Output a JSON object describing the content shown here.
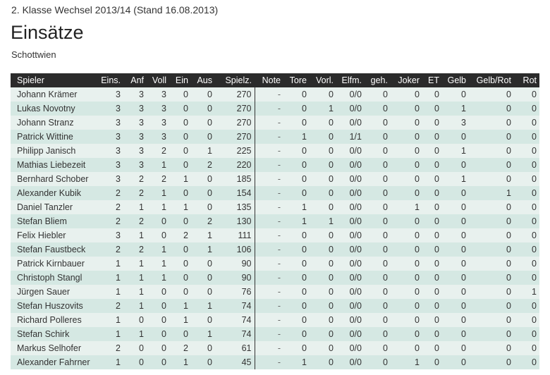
{
  "header": {
    "league": "2. Klasse Wechsel 2013/14 (Stand 16.08.2013)",
    "title": "Einsätze",
    "team": "Schottwien"
  },
  "table": {
    "columns": [
      "Spieler",
      "Eins.",
      "Anf",
      "Voll",
      "Ein",
      "Aus",
      "Spielz.",
      "Note",
      "Tore",
      "Vorl.",
      "Elfm.",
      "geh.",
      "Joker",
      "ET",
      "Gelb",
      "Gelb/Rot",
      "Rot"
    ],
    "rows": [
      [
        "Johann Krämer",
        "3",
        "3",
        "3",
        "0",
        "0",
        "270",
        "-",
        "0",
        "0",
        "0/0",
        "0",
        "0",
        "0",
        "0",
        "0",
        "0"
      ],
      [
        "Lukas Novotny",
        "3",
        "3",
        "3",
        "0",
        "0",
        "270",
        "-",
        "0",
        "1",
        "0/0",
        "0",
        "0",
        "0",
        "1",
        "0",
        "0"
      ],
      [
        "Johann Stranz",
        "3",
        "3",
        "3",
        "0",
        "0",
        "270",
        "-",
        "0",
        "0",
        "0/0",
        "0",
        "0",
        "0",
        "3",
        "0",
        "0"
      ],
      [
        "Patrick Wittine",
        "3",
        "3",
        "3",
        "0",
        "0",
        "270",
        "-",
        "1",
        "0",
        "1/1",
        "0",
        "0",
        "0",
        "0",
        "0",
        "0"
      ],
      [
        "Philipp Janisch",
        "3",
        "3",
        "2",
        "0",
        "1",
        "225",
        "-",
        "0",
        "0",
        "0/0",
        "0",
        "0",
        "0",
        "1",
        "0",
        "0"
      ],
      [
        "Mathias Liebezeit",
        "3",
        "3",
        "1",
        "0",
        "2",
        "220",
        "-",
        "0",
        "0",
        "0/0",
        "0",
        "0",
        "0",
        "0",
        "0",
        "0"
      ],
      [
        "Bernhard Schober",
        "3",
        "2",
        "2",
        "1",
        "0",
        "185",
        "-",
        "0",
        "0",
        "0/0",
        "0",
        "0",
        "0",
        "1",
        "0",
        "0"
      ],
      [
        "Alexander Kubik",
        "2",
        "2",
        "1",
        "0",
        "0",
        "154",
        "-",
        "0",
        "0",
        "0/0",
        "0",
        "0",
        "0",
        "0",
        "1",
        "0"
      ],
      [
        "Daniel Tanzler",
        "2",
        "1",
        "1",
        "1",
        "0",
        "135",
        "-",
        "1",
        "0",
        "0/0",
        "0",
        "1",
        "0",
        "0",
        "0",
        "0"
      ],
      [
        "Stefan Bliem",
        "2",
        "2",
        "0",
        "0",
        "2",
        "130",
        "-",
        "1",
        "1",
        "0/0",
        "0",
        "0",
        "0",
        "0",
        "0",
        "0"
      ],
      [
        "Felix Hiebler",
        "3",
        "1",
        "0",
        "2",
        "1",
        "111",
        "-",
        "0",
        "0",
        "0/0",
        "0",
        "0",
        "0",
        "0",
        "0",
        "0"
      ],
      [
        "Stefan Faustbeck",
        "2",
        "2",
        "1",
        "0",
        "1",
        "106",
        "-",
        "0",
        "0",
        "0/0",
        "0",
        "0",
        "0",
        "0",
        "0",
        "0"
      ],
      [
        "Patrick Kirnbauer",
        "1",
        "1",
        "1",
        "0",
        "0",
        "90",
        "-",
        "0",
        "0",
        "0/0",
        "0",
        "0",
        "0",
        "0",
        "0",
        "0"
      ],
      [
        "Christoph Stangl",
        "1",
        "1",
        "1",
        "0",
        "0",
        "90",
        "-",
        "0",
        "0",
        "0/0",
        "0",
        "0",
        "0",
        "0",
        "0",
        "0"
      ],
      [
        "Jürgen Sauer",
        "1",
        "1",
        "0",
        "0",
        "0",
        "76",
        "-",
        "0",
        "0",
        "0/0",
        "0",
        "0",
        "0",
        "0",
        "0",
        "1"
      ],
      [
        "Stefan Huszovits",
        "2",
        "1",
        "0",
        "1",
        "1",
        "74",
        "-",
        "0",
        "0",
        "0/0",
        "0",
        "0",
        "0",
        "0",
        "0",
        "0"
      ],
      [
        "Richard Polleres",
        "1",
        "0",
        "0",
        "1",
        "0",
        "74",
        "-",
        "0",
        "0",
        "0/0",
        "0",
        "0",
        "0",
        "0",
        "0",
        "0"
      ],
      [
        "Stefan Schirk",
        "1",
        "1",
        "0",
        "0",
        "1",
        "74",
        "-",
        "0",
        "0",
        "0/0",
        "0",
        "0",
        "0",
        "0",
        "0",
        "0"
      ],
      [
        "Markus Selhofer",
        "2",
        "0",
        "0",
        "2",
        "0",
        "61",
        "-",
        "0",
        "0",
        "0/0",
        "0",
        "0",
        "0",
        "0",
        "0",
        "0"
      ],
      [
        "Alexander Fahrner",
        "1",
        "0",
        "0",
        "1",
        "0",
        "45",
        "-",
        "1",
        "0",
        "0/0",
        "0",
        "1",
        "0",
        "0",
        "0",
        "0"
      ]
    ]
  }
}
